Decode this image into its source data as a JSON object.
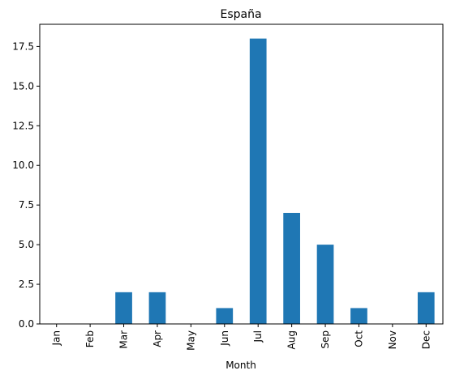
{
  "chart_data": {
    "type": "bar",
    "title": "España",
    "xlabel": "Month",
    "ylabel": "",
    "categories": [
      "Jan",
      "Feb",
      "Mar",
      "Apr",
      "May",
      "Jun",
      "Jul",
      "Aug",
      "Sep",
      "Oct",
      "Nov",
      "Dec"
    ],
    "values": [
      0,
      0,
      2,
      2,
      0,
      1,
      18,
      7,
      5,
      1,
      0,
      2
    ],
    "ylim": [
      0,
      18.9
    ],
    "yticks": [
      0.0,
      2.5,
      5.0,
      7.5,
      10.0,
      12.5,
      15.0,
      17.5
    ],
    "ytick_labels": [
      "0.0",
      "2.5",
      "5.0",
      "7.5",
      "10.0",
      "12.5",
      "15.0",
      "17.5"
    ],
    "bar_color": "#1f77b4",
    "grid": false,
    "legend": false
  }
}
